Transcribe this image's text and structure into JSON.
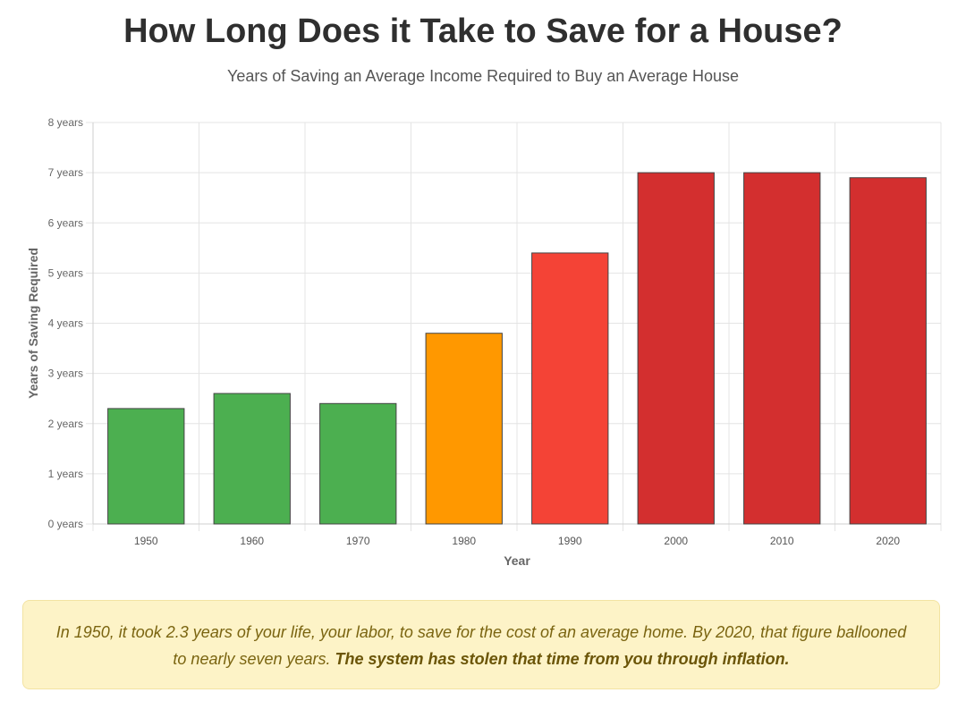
{
  "header": {
    "title": "How Long Does it Take to Save for a House?",
    "subtitle": "Years of Saving an Average Income Required to Buy an Average House"
  },
  "chart_data": {
    "type": "bar",
    "title": "How Long Does it Take to Save for a House?",
    "subtitle": "Years of Saving an Average Income Required to Buy an Average House",
    "xlabel": "Year",
    "ylabel": "Years of Saving Required",
    "categories": [
      "1950",
      "1960",
      "1970",
      "1980",
      "1990",
      "2000",
      "2010",
      "2020"
    ],
    "values": [
      2.3,
      2.6,
      2.4,
      3.8,
      5.4,
      7.0,
      7.0,
      6.9
    ],
    "bar_colors": [
      "#4caf50",
      "#4caf50",
      "#4caf50",
      "#ff9800",
      "#f44336",
      "#d32f2f",
      "#d32f2f",
      "#d32f2f"
    ],
    "ylim": [
      0,
      8
    ],
    "y_ticks": [
      0,
      1,
      2,
      3,
      4,
      5,
      6,
      7,
      8
    ],
    "y_tick_suffix": " years",
    "grid": true
  },
  "note": {
    "text": "In 1950, it took 2.3 years of your life, your labor, to save for the cost of an average home. By 2020, that figure ballooned to nearly seven years. ",
    "emphasis": "The system has stolen that time from you through inflation."
  }
}
